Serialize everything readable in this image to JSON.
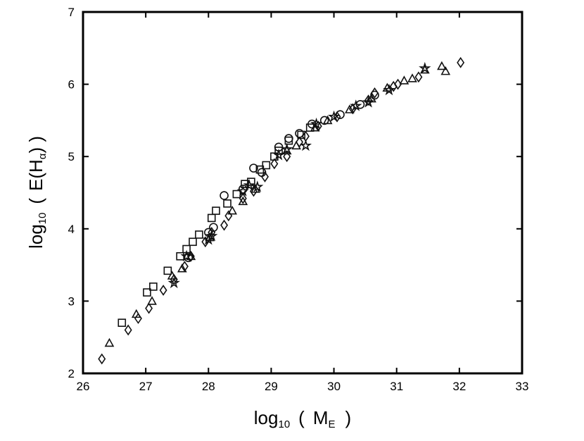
{
  "chart_data": {
    "type": "scatter",
    "title": "",
    "xlabel": {
      "prefix": "log",
      "sub": "10",
      "open": "(",
      "main": "M",
      "main_sub": "E",
      "close": ")"
    },
    "ylabel": {
      "prefix": "log",
      "sub": "10",
      "open": "(",
      "main": "E(H",
      "main_sub": "α",
      "close": ") )"
    },
    "xlim": [
      26,
      33
    ],
    "ylim": [
      2,
      7
    ],
    "xticks": [
      "26",
      "27",
      "28",
      "29",
      "30",
      "31",
      "32",
      "33"
    ],
    "yticks": [
      "2",
      "3",
      "4",
      "5",
      "6",
      "7"
    ],
    "grid": false,
    "series": [
      {
        "marker": "diamond",
        "points": [
          [
            26.3,
            2.2
          ],
          [
            26.72,
            2.6
          ],
          [
            26.88,
            2.76
          ],
          [
            27.05,
            2.9
          ],
          [
            27.28,
            3.15
          ],
          [
            27.45,
            3.3
          ],
          [
            27.62,
            3.48
          ],
          [
            27.72,
            3.62
          ],
          [
            27.95,
            3.82
          ],
          [
            28.05,
            3.95
          ],
          [
            28.25,
            4.05
          ],
          [
            28.32,
            4.18
          ],
          [
            28.55,
            4.42
          ],
          [
            28.72,
            4.52
          ],
          [
            28.9,
            4.72
          ],
          [
            29.05,
            4.9
          ],
          [
            29.25,
            5.0
          ],
          [
            29.45,
            5.2
          ],
          [
            29.55,
            5.28
          ],
          [
            29.75,
            5.42
          ],
          [
            30.05,
            5.55
          ],
          [
            30.3,
            5.66
          ],
          [
            30.55,
            5.78
          ],
          [
            30.65,
            5.88
          ],
          [
            30.95,
            5.97
          ],
          [
            31.02,
            6.0
          ],
          [
            31.35,
            6.1
          ],
          [
            32.02,
            6.3
          ]
        ]
      },
      {
        "marker": "triangle",
        "points": [
          [
            26.42,
            2.42
          ],
          [
            26.85,
            2.82
          ],
          [
            27.1,
            3.0
          ],
          [
            27.42,
            3.35
          ],
          [
            27.58,
            3.45
          ],
          [
            27.72,
            3.62
          ],
          [
            28.02,
            3.88
          ],
          [
            28.38,
            4.25
          ],
          [
            28.55,
            4.38
          ],
          [
            28.75,
            4.55
          ],
          [
            29.25,
            5.08
          ],
          [
            29.4,
            5.15
          ],
          [
            29.7,
            5.4
          ],
          [
            29.9,
            5.5
          ],
          [
            30.25,
            5.65
          ],
          [
            30.6,
            5.8
          ],
          [
            30.85,
            5.95
          ],
          [
            31.12,
            6.05
          ],
          [
            31.25,
            6.08
          ],
          [
            31.45,
            6.2
          ],
          [
            31.72,
            6.25
          ],
          [
            31.78,
            6.18
          ]
        ]
      },
      {
        "marker": "square",
        "points": [
          [
            26.62,
            2.7
          ],
          [
            27.02,
            3.12
          ],
          [
            27.12,
            3.2
          ],
          [
            27.35,
            3.42
          ],
          [
            27.55,
            3.62
          ],
          [
            27.65,
            3.72
          ],
          [
            27.75,
            3.82
          ],
          [
            27.85,
            3.92
          ],
          [
            28.05,
            4.15
          ],
          [
            28.12,
            4.25
          ],
          [
            28.3,
            4.35
          ],
          [
            28.45,
            4.48
          ],
          [
            28.58,
            4.62
          ],
          [
            28.68,
            4.65
          ],
          [
            28.82,
            4.82
          ],
          [
            28.92,
            4.88
          ],
          [
            29.05,
            5.0
          ],
          [
            29.12,
            5.08
          ],
          [
            29.28,
            5.22
          ],
          [
            29.48,
            5.3
          ],
          [
            29.62,
            5.4
          ]
        ]
      },
      {
        "marker": "circle",
        "points": [
          [
            27.68,
            3.6
          ],
          [
            28.0,
            3.95
          ],
          [
            28.08,
            4.02
          ],
          [
            28.25,
            4.46
          ],
          [
            28.55,
            4.55
          ],
          [
            28.72,
            4.84
          ],
          [
            28.85,
            4.78
          ],
          [
            29.12,
            5.13
          ],
          [
            29.28,
            5.25
          ],
          [
            29.45,
            5.32
          ],
          [
            29.65,
            5.45
          ],
          [
            29.85,
            5.5
          ],
          [
            30.1,
            5.58
          ],
          [
            30.42,
            5.72
          ],
          [
            30.65,
            5.85
          ]
        ]
      },
      {
        "marker": "star",
        "points": [
          [
            27.45,
            3.25
          ],
          [
            27.65,
            3.62
          ],
          [
            28.0,
            3.85
          ],
          [
            28.05,
            3.9
          ],
          [
            28.55,
            4.52
          ],
          [
            28.65,
            4.6
          ],
          [
            28.78,
            4.58
          ],
          [
            29.12,
            5.02
          ],
          [
            29.25,
            5.1
          ],
          [
            29.55,
            5.15
          ],
          [
            29.72,
            5.45
          ],
          [
            30.0,
            5.55
          ],
          [
            30.35,
            5.7
          ],
          [
            30.55,
            5.75
          ],
          [
            30.88,
            5.92
          ],
          [
            31.45,
            6.22
          ]
        ]
      }
    ]
  }
}
